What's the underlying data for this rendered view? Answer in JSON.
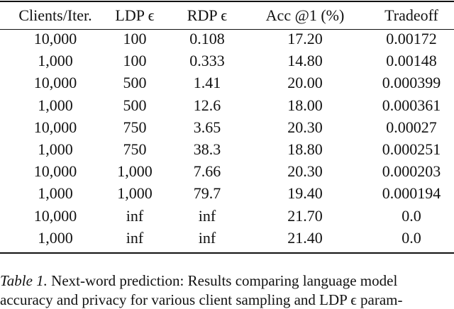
{
  "table": {
    "header": [
      "Clients/Iter.",
      "LDP ϵ",
      "RDP ϵ",
      "Acc @1 (%)",
      "Tradeoff"
    ],
    "rows": [
      [
        "10,000",
        "100",
        "0.108",
        "17.20",
        "0.00172"
      ],
      [
        "1,000",
        "100",
        "0.333",
        "14.80",
        "0.00148"
      ],
      [
        "10,000",
        "500",
        "1.41",
        "20.00",
        "0.000399"
      ],
      [
        "1,000",
        "500",
        "12.6",
        "18.00",
        "0.000361"
      ],
      [
        "10,000",
        "750",
        "3.65",
        "20.30",
        "0.00027"
      ],
      [
        "1,000",
        "750",
        "38.3",
        "18.80",
        "0.000251"
      ],
      [
        "10,000",
        "1,000",
        "7.66",
        "20.30",
        "0.000203"
      ],
      [
        "1,000",
        "1,000",
        "79.7",
        "19.40",
        "0.000194"
      ],
      [
        "10,000",
        "inf",
        "inf",
        "21.70",
        "0.0"
      ],
      [
        "1,000",
        "inf",
        "inf",
        "21.40",
        "0.0"
      ]
    ]
  },
  "caption": {
    "label": "Table 1.",
    "lines": [
      "Next-word prediction: Results comparing language model",
      "accuracy and privacy for various client sampling and LDP ϵ param-"
    ]
  }
}
